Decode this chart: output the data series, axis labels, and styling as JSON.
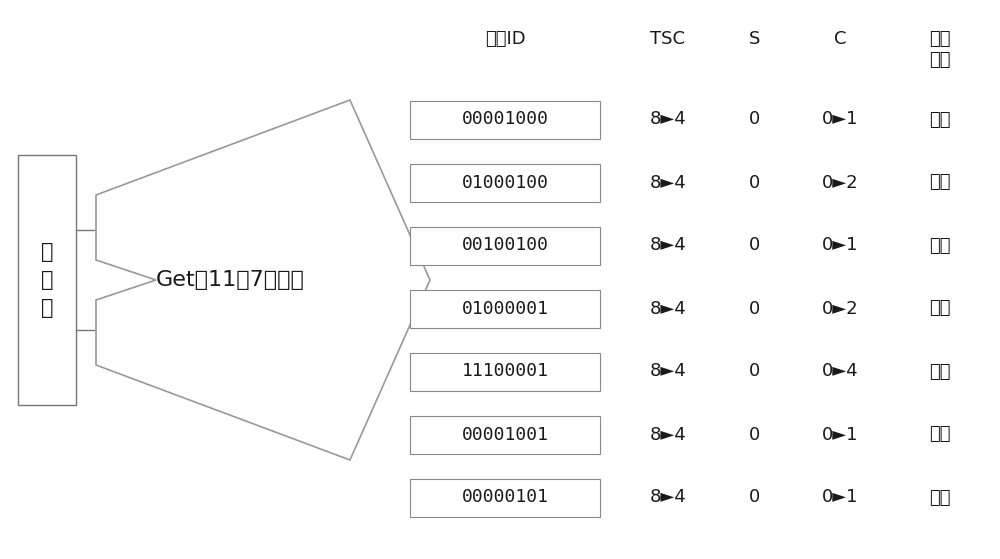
{
  "background_color": "#ffffff",
  "reader_box_text": "阅\n读\n器",
  "command_text": "Get（11，7）指令",
  "header_labels": {
    "tag_id": "标签ID",
    "tsc": "TSC",
    "s": "S",
    "c": "C",
    "response": "应答\n情况"
  },
  "rows": [
    {
      "id": "00001000",
      "tsc": "8►4",
      "s": "0",
      "c": "0►1",
      "response": "应答"
    },
    {
      "id": "01000100",
      "tsc": "8►4",
      "s": "0",
      "c": "0►2",
      "response": "应答"
    },
    {
      "id": "00100100",
      "tsc": "8►4",
      "s": "0",
      "c": "0►1",
      "response": "应答"
    },
    {
      "id": "01000001",
      "tsc": "8►4",
      "s": "0",
      "c": "0►2",
      "response": "应答"
    },
    {
      "id": "11100001",
      "tsc": "8►4",
      "s": "0",
      "c": "0►4",
      "response": "应答"
    },
    {
      "id": "00001001",
      "tsc": "8►4",
      "s": "0",
      "c": "0►1",
      "response": "应答"
    },
    {
      "id": "00000101",
      "tsc": "8►4",
      "s": "0",
      "c": "0►1",
      "response": "应答"
    }
  ],
  "text_color": "#1a1a1a",
  "font_size_main": 13,
  "font_size_header": 13,
  "font_size_id": 13,
  "font_size_reader": 15
}
